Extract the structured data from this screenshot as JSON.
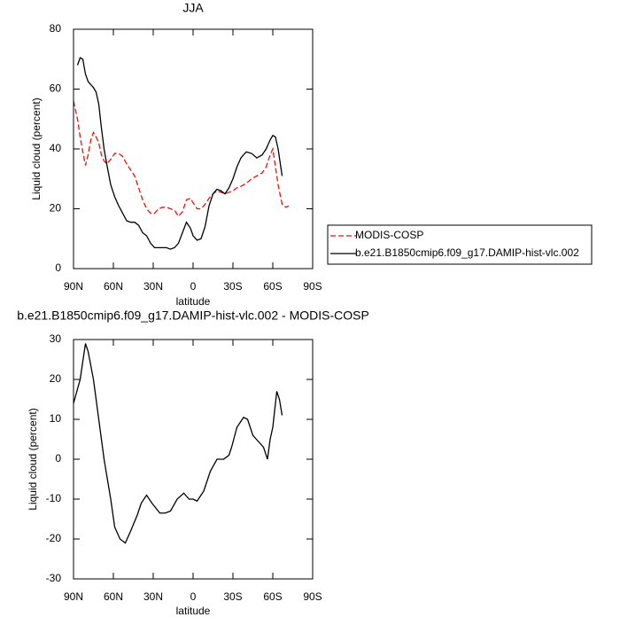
{
  "chart_data": [
    {
      "type": "line",
      "title": "JJA",
      "xlabel": "latitude",
      "ylabel": "Liquid cloud (percent)",
      "x": [
        90,
        87,
        85,
        83,
        81,
        79,
        77,
        75,
        73,
        71,
        69,
        67,
        65,
        62,
        59,
        56,
        53,
        50,
        47,
        44,
        41,
        38,
        35,
        32,
        29,
        26,
        23,
        20,
        17,
        14,
        11,
        8,
        5,
        2,
        0,
        -3,
        -6,
        -9,
        -12,
        -15,
        -18,
        -21,
        -24,
        -27,
        -30,
        -33,
        -36,
        -40,
        -44,
        -48,
        -52,
        -55,
        -58,
        -60,
        -62,
        -64,
        -67,
        -70,
        -72
      ],
      "series": [
        {
          "name": "MODIS-COSP",
          "color": "#e8120c",
          "linestyle": "dashed",
          "values": [
            56,
            50,
            44,
            39,
            34.5,
            38,
            43,
            45.5,
            44,
            42,
            38,
            36,
            35,
            36.5,
            38.5,
            38.5,
            37.5,
            35,
            33,
            31,
            27,
            23,
            20,
            18.5,
            18.5,
            20,
            20.5,
            20.5,
            20,
            19.5,
            17.5,
            19,
            23,
            23.5,
            22,
            20,
            20,
            21.5,
            23.5,
            25,
            26,
            25.5,
            25,
            25.5,
            26,
            27,
            27.5,
            28.5,
            30,
            31,
            32,
            34,
            38,
            40,
            34,
            28,
            21.5,
            20.5,
            21
          ]
        },
        {
          "name": "b.e21.B1850cmip6.f09_g17.DAMIP-hist-vlc.002",
          "color": "#000000",
          "linestyle": "solid",
          "values": [
            null,
            68,
            70.5,
            70,
            65,
            62.5,
            61.5,
            60.5,
            59,
            55,
            47,
            40,
            35,
            28,
            24,
            21,
            18.5,
            16,
            15.5,
            15.5,
            14.5,
            12,
            11,
            8.5,
            7,
            7,
            7,
            7,
            6.5,
            7,
            8.5,
            12,
            15.5,
            13.5,
            11,
            9.5,
            10,
            14,
            21,
            25,
            26.5,
            26,
            25,
            27,
            30,
            34,
            37,
            39,
            38.5,
            37,
            38,
            40,
            43,
            44.5,
            44,
            40,
            31,
            null,
            null
          ]
        }
      ],
      "xlim": [
        90,
        -90
      ],
      "xticks": [
        {
          "value": 90,
          "label": "90N"
        },
        {
          "value": 60,
          "label": "60N"
        },
        {
          "value": 30,
          "label": "30N"
        },
        0,
        {
          "value": -30,
          "label": "30S"
        },
        {
          "value": -60,
          "label": "60S"
        },
        {
          "value": -90,
          "label": "90S"
        }
      ],
      "ylim": [
        0,
        80
      ],
      "yticks": [
        0,
        20,
        40,
        60,
        80
      ],
      "legend": "right"
    },
    {
      "type": "line",
      "title": "b.e21.B1850cmip6.f09_g17.DAMIP-hist-vlc.002 - MODIS-COSP",
      "xlabel": "latitude",
      "ylabel": "Liquid cloud (percent)",
      "x": [
        90,
        85,
        81,
        79,
        75,
        71,
        67,
        62,
        59,
        55,
        51,
        47,
        42,
        39,
        35,
        31,
        25,
        21,
        17,
        12,
        7,
        3,
        0,
        -3,
        -8,
        -13,
        -18,
        -23,
        -27,
        -29,
        -33,
        -38,
        -41,
        -45,
        -49,
        -53,
        -56,
        -58,
        -60,
        -63,
        -65,
        -67
      ],
      "series": [
        {
          "color": "#000000",
          "linestyle": "solid",
          "values": [
            14,
            20,
            29,
            27,
            20,
            10,
            0,
            -10,
            -17,
            -20,
            -21,
            -18,
            -14,
            -11,
            -9,
            -11,
            -13.5,
            -13.5,
            -13,
            -10,
            -8.5,
            -10,
            -10,
            -10.5,
            -8,
            -3,
            0,
            0,
            1,
            3,
            8,
            10.5,
            10,
            6,
            4.5,
            3,
            0,
            5,
            8,
            17,
            15,
            11
          ]
        }
      ],
      "xlim": [
        90,
        -90
      ],
      "xticks": [
        {
          "value": 90,
          "label": "90N"
        },
        {
          "value": 60,
          "label": "60N"
        },
        {
          "value": 30,
          "label": "30N"
        },
        0,
        {
          "value": -30,
          "label": "30S"
        },
        {
          "value": -60,
          "label": "60S"
        },
        {
          "value": -90,
          "label": "90S"
        }
      ],
      "ylim": [
        -30,
        30
      ],
      "yticks": [
        -30,
        -20,
        -10,
        0,
        10,
        20,
        30
      ]
    }
  ]
}
